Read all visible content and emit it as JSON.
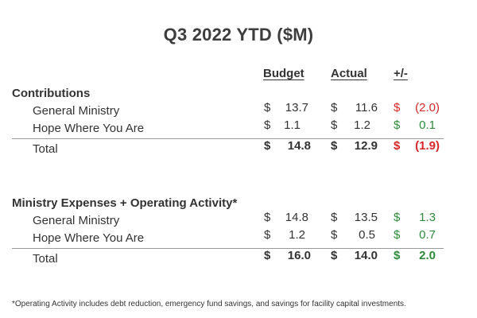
{
  "title": "Q3 2022 YTD ($M)",
  "headers": {
    "budget": "Budget",
    "actual": "Actual",
    "diff": "+/-"
  },
  "colors": {
    "negative": "#d62828",
    "positive": "#2e8b3a",
    "text": "#333333"
  },
  "sections": [
    {
      "name": "Contributions",
      "rows": [
        {
          "label": "General Ministry",
          "budget": "13.7",
          "actual": "11.6",
          "diff": "(2.0)",
          "diff_tone": "negative"
        },
        {
          "label": "Hope Where You Are",
          "budget": "1.1",
          "actual": "1.2",
          "diff": "0.1",
          "diff_tone": "positive"
        }
      ],
      "total": {
        "label": "Total",
        "budget": "14.8",
        "actual": "12.9",
        "diff": "(1.9)",
        "diff_tone": "negative"
      }
    },
    {
      "name": "Ministry Expenses + Operating Activity*",
      "rows": [
        {
          "label": "General Ministry",
          "budget": "14.8",
          "actual": "13.5",
          "diff": "1.3",
          "diff_tone": "positive"
        },
        {
          "label": "Hope Where You Are",
          "budget": "1.2",
          "actual": "0.5",
          "diff": "0.7",
          "diff_tone": "positive"
        }
      ],
      "total": {
        "label": "Total",
        "budget": "16.0",
        "actual": "14.0",
        "diff": "2.0",
        "diff_tone": "positive"
      }
    }
  ],
  "currency_symbol": "$",
  "footnote": "*Operating Activity includes debt reduction, emergency fund savings, and savings for facility capital investments."
}
